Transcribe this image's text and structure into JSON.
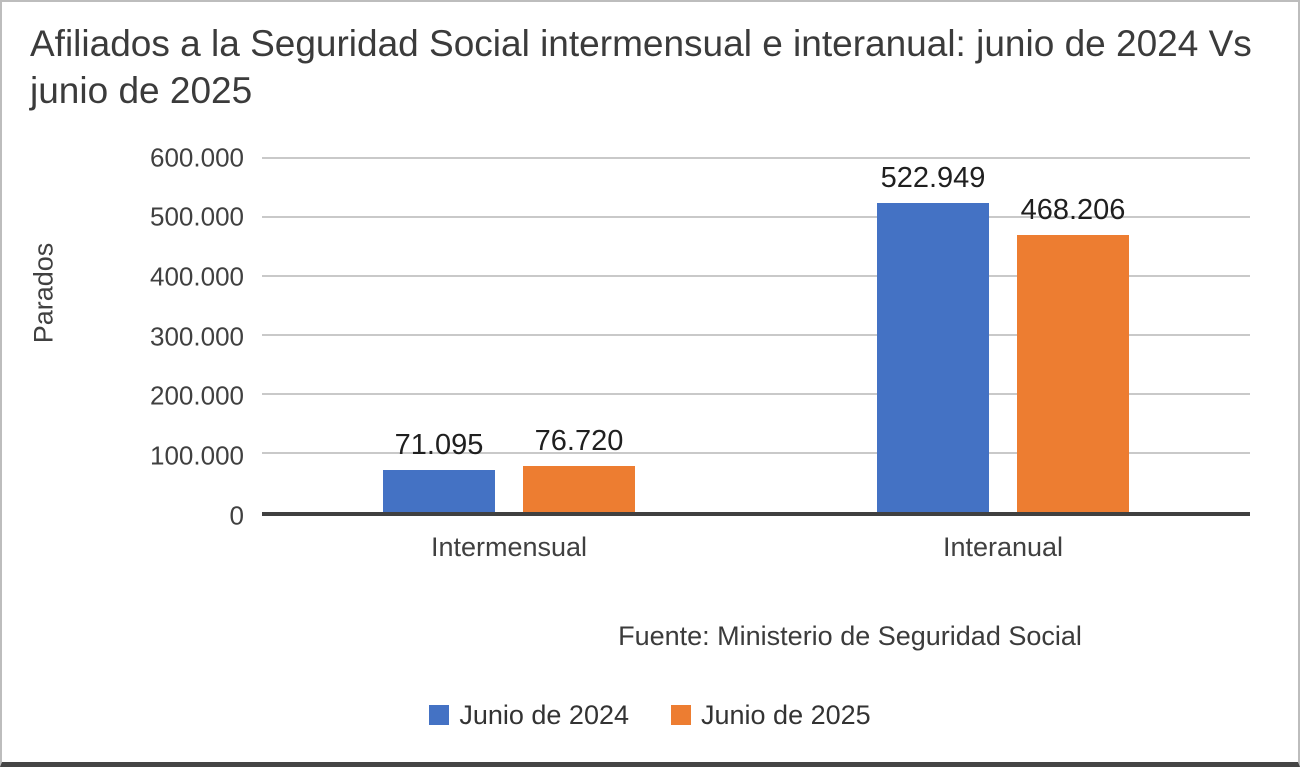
{
  "chart_data": {
    "type": "bar",
    "title": "Afiliados a la Seguridad Social intermensual e interanual: junio de 2024 Vs junio de 2025",
    "ylabel": "Parados",
    "xlabel": "",
    "categories": [
      "Intermensual",
      "Interanual"
    ],
    "series": [
      {
        "name": "Junio de 2024",
        "color": "#4472C4",
        "values": [
          71095,
          522949
        ],
        "labels": [
          "71.095",
          "522.949"
        ]
      },
      {
        "name": "Junio de 2025",
        "color": "#ED7D31",
        "values": [
          76720,
          468206
        ],
        "labels": [
          "76.720",
          "468.206"
        ]
      }
    ],
    "ylim": [
      0,
      600000
    ],
    "ytick_step": 100000,
    "yticks": [
      "0",
      "100.000",
      "200.000",
      "300.000",
      "400.000",
      "500.000",
      "600.000"
    ],
    "grid": true,
    "legend_position": "bottom",
    "source": "Fuente: Ministerio de Seguridad Social"
  }
}
